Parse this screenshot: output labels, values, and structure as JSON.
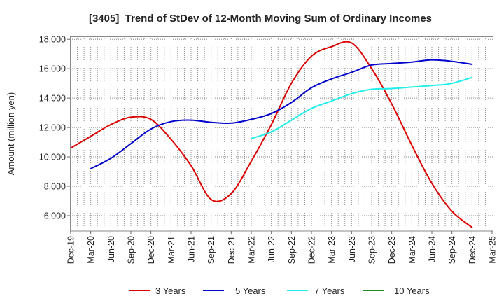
{
  "chart_data": {
    "type": "line",
    "title": "[3405]  Trend of StDev of 12-Month Moving Sum of Ordinary Incomes",
    "xlabel": "",
    "ylabel": "Amount (million yen)",
    "ylim": [
      4950,
      18200
    ],
    "grid": true,
    "legend_position": "bottom",
    "yticks": [
      {
        "value": 6000,
        "label": "6,000"
      },
      {
        "value": 8000,
        "label": "8,000"
      },
      {
        "value": 10000,
        "label": "10,000"
      },
      {
        "value": 12000,
        "label": "12,000"
      },
      {
        "value": 14000,
        "label": "14,000"
      },
      {
        "value": 16000,
        "label": "16,000"
      },
      {
        "value": 18000,
        "label": "18,000"
      }
    ],
    "categories": [
      "Dec-19",
      "Mar-20",
      "Jun-20",
      "Sep-20",
      "Dec-20",
      "Mar-21",
      "Jun-21",
      "Sep-21",
      "Dec-21",
      "Mar-22",
      "Jun-22",
      "Sep-22",
      "Dec-22",
      "Mar-23",
      "Jun-23",
      "Sep-23",
      "Dec-23",
      "Mar-24",
      "Jun-24",
      "Sep-24",
      "Dec-24",
      "Mar-25"
    ],
    "series": [
      {
        "name": "3 Years",
        "color": "#dd0000",
        "values": [
          10600,
          11400,
          12200,
          12700,
          12550,
          11200,
          9400,
          7100,
          7500,
          9700,
          12200,
          15000,
          16850,
          17500,
          17750,
          16000,
          13600,
          10800,
          8200,
          6300,
          5200,
          null
        ]
      },
      {
        "name": "5 Years",
        "color": "#0000cc",
        "values": [
          null,
          9200,
          9900,
          10900,
          11900,
          12400,
          12500,
          12350,
          12300,
          12550,
          12950,
          13700,
          14700,
          15300,
          15750,
          16250,
          16350,
          16450,
          16600,
          16500,
          16300,
          null
        ]
      },
      {
        "name": "7 Years",
        "color": "#22eeee",
        "values": [
          null,
          null,
          null,
          null,
          null,
          null,
          null,
          null,
          null,
          11250,
          11700,
          12500,
          13300,
          13800,
          14300,
          14600,
          14650,
          14750,
          14850,
          15000,
          15400,
          null
        ]
      },
      {
        "name": "10 Years",
        "color": "#228b22",
        "values": [
          null,
          null,
          null,
          null,
          null,
          null,
          null,
          null,
          null,
          null,
          null,
          null,
          null,
          null,
          null,
          null,
          null,
          null,
          null,
          null,
          null,
          null
        ]
      }
    ]
  }
}
